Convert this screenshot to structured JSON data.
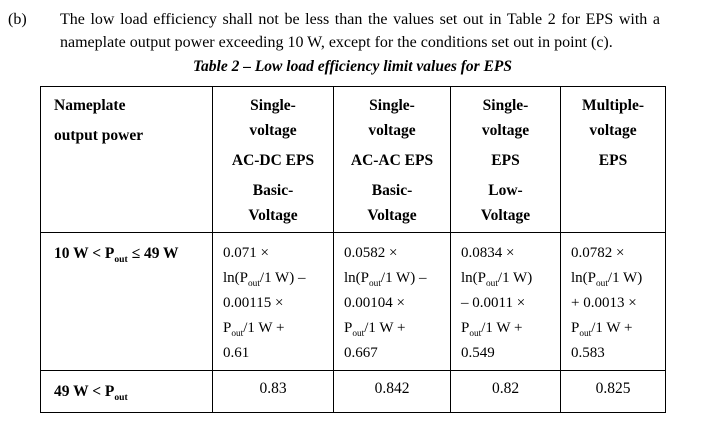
{
  "document": {
    "point_label": "(b)",
    "point_text": "The low load efficiency shall not be less than the values set out in Table 2 for EPS with a nameplate output power exceeding 10 W, except for the conditions set out in point (c)."
  },
  "table": {
    "caption": "Table 2 – Low load efficiency limit values for EPS",
    "header": [
      {
        "groups": [
          [
            "Nameplate"
          ],
          [
            "output power"
          ]
        ]
      },
      {
        "groups": [
          [
            "Single-",
            "voltage"
          ],
          [
            "AC-DC EPS"
          ],
          [
            "Basic-",
            "Voltage"
          ]
        ]
      },
      {
        "groups": [
          [
            "Single-",
            "voltage"
          ],
          [
            "AC-AC EPS"
          ],
          [
            "Basic-",
            "Voltage"
          ]
        ]
      },
      {
        "groups": [
          [
            "Single-",
            "voltage"
          ],
          [
            "EPS"
          ],
          [
            "Low-",
            "Voltage"
          ]
        ]
      },
      {
        "groups": [
          [
            "Multiple-",
            "voltage"
          ],
          [
            "EPS"
          ]
        ]
      }
    ],
    "rows": [
      {
        "range": "10 W < P~out~ ≤ 49 W",
        "formulas": [
          [
            "0.071 ×",
            "ln(P~out~/1 W) –",
            "0.00115 ×",
            "P~out~/1 W +",
            "0.61"
          ],
          [
            "0.0582 ×",
            "ln(P~out~/1 W) –",
            "0.00104 ×",
            "P~out~/1 W +",
            "0.667"
          ],
          [
            "0.0834 ×",
            "ln(P~out~/1 W)",
            "– 0.0011 ×",
            "P~out~/1 W +",
            "0.549"
          ],
          [
            "0.0782 ×",
            "ln(P~out~/1 W)",
            "+ 0.0013 ×",
            "P~out~/1 W +",
            "0.583"
          ]
        ]
      },
      {
        "range": "49 W < P~out~",
        "values": [
          "0.83",
          "0.842",
          "0.82",
          "0.825"
        ]
      }
    ]
  }
}
